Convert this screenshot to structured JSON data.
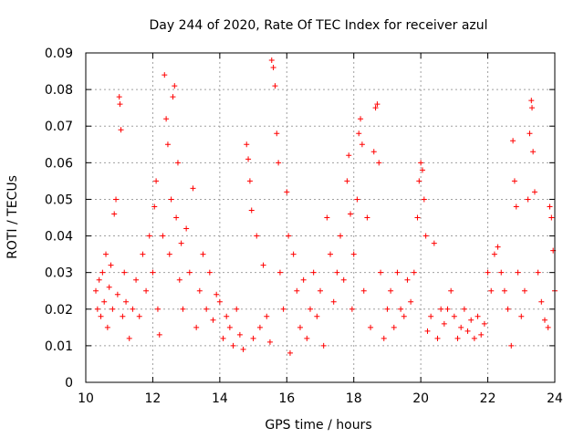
{
  "chart_data": {
    "type": "scatter",
    "title": "Day 244 of 2020, Rate Of TEC Index for receiver azul",
    "xlabel": "GPS time / hours",
    "ylabel": "ROTI / TECUs",
    "xlim": [
      10,
      24
    ],
    "ylim": [
      0,
      0.09
    ],
    "grid": true,
    "marker": "+",
    "marker_color": "#ff0000",
    "x_ticks": [
      "10",
      "12",
      "14",
      "16",
      "18",
      "20",
      "22",
      "24"
    ],
    "y_ticks": [
      "0",
      "0.01",
      "0.02",
      "0.03",
      "0.04",
      "0.05",
      "0.06",
      "0.07",
      "0.08",
      "0.09"
    ],
    "series": [
      {
        "points": [
          [
            10.3,
            0.025
          ],
          [
            10.35,
            0.02
          ],
          [
            10.4,
            0.028
          ],
          [
            10.45,
            0.018
          ],
          [
            10.5,
            0.03
          ],
          [
            10.55,
            0.022
          ],
          [
            10.6,
            0.035
          ],
          [
            10.65,
            0.015
          ],
          [
            10.7,
            0.026
          ],
          [
            10.75,
            0.032
          ],
          [
            10.8,
            0.02
          ],
          [
            10.85,
            0.046
          ],
          [
            10.9,
            0.05
          ],
          [
            10.95,
            0.024
          ],
          [
            11.0,
            0.078
          ],
          [
            11.02,
            0.076
          ],
          [
            11.05,
            0.069
          ],
          [
            11.1,
            0.018
          ],
          [
            11.15,
            0.03
          ],
          [
            11.2,
            0.022
          ],
          [
            11.3,
            0.012
          ],
          [
            11.4,
            0.02
          ],
          [
            11.5,
            0.028
          ],
          [
            11.6,
            0.018
          ],
          [
            11.7,
            0.035
          ],
          [
            11.8,
            0.025
          ],
          [
            11.9,
            0.04
          ],
          [
            12.0,
            0.03
          ],
          [
            12.05,
            0.048
          ],
          [
            12.1,
            0.055
          ],
          [
            12.15,
            0.02
          ],
          [
            12.2,
            0.013
          ],
          [
            12.3,
            0.04
          ],
          [
            12.35,
            0.084
          ],
          [
            12.4,
            0.072
          ],
          [
            12.45,
            0.065
          ],
          [
            12.5,
            0.035
          ],
          [
            12.55,
            0.05
          ],
          [
            12.6,
            0.078
          ],
          [
            12.65,
            0.081
          ],
          [
            12.7,
            0.045
          ],
          [
            12.75,
            0.06
          ],
          [
            12.8,
            0.028
          ],
          [
            12.85,
            0.038
          ],
          [
            12.9,
            0.02
          ],
          [
            13.0,
            0.042
          ],
          [
            13.1,
            0.03
          ],
          [
            13.2,
            0.053
          ],
          [
            13.3,
            0.015
          ],
          [
            13.4,
            0.025
          ],
          [
            13.5,
            0.035
          ],
          [
            13.6,
            0.02
          ],
          [
            13.7,
            0.03
          ],
          [
            13.8,
            0.017
          ],
          [
            13.9,
            0.024
          ],
          [
            14.0,
            0.022
          ],
          [
            14.1,
            0.012
          ],
          [
            14.2,
            0.018
          ],
          [
            14.3,
            0.015
          ],
          [
            14.4,
            0.01
          ],
          [
            14.5,
            0.02
          ],
          [
            14.6,
            0.013
          ],
          [
            14.7,
            0.009
          ],
          [
            14.8,
            0.065
          ],
          [
            14.85,
            0.061
          ],
          [
            14.9,
            0.055
          ],
          [
            14.95,
            0.047
          ],
          [
            15.0,
            0.012
          ],
          [
            15.1,
            0.04
          ],
          [
            15.2,
            0.015
          ],
          [
            15.3,
            0.032
          ],
          [
            15.4,
            0.018
          ],
          [
            15.5,
            0.011
          ],
          [
            15.55,
            0.088
          ],
          [
            15.6,
            0.086
          ],
          [
            15.65,
            0.081
          ],
          [
            15.7,
            0.068
          ],
          [
            15.75,
            0.06
          ],
          [
            15.8,
            0.03
          ],
          [
            15.9,
            0.02
          ],
          [
            16.0,
            0.052
          ],
          [
            16.05,
            0.04
          ],
          [
            16.1,
            0.008
          ],
          [
            16.2,
            0.035
          ],
          [
            16.3,
            0.025
          ],
          [
            16.4,
            0.015
          ],
          [
            16.5,
            0.028
          ],
          [
            16.6,
            0.012
          ],
          [
            16.7,
            0.02
          ],
          [
            16.8,
            0.03
          ],
          [
            16.9,
            0.018
          ],
          [
            17.0,
            0.025
          ],
          [
            17.1,
            0.01
          ],
          [
            17.2,
            0.045
          ],
          [
            17.3,
            0.035
          ],
          [
            17.4,
            0.022
          ],
          [
            17.5,
            0.03
          ],
          [
            17.6,
            0.04
          ],
          [
            17.7,
            0.028
          ],
          [
            17.8,
            0.055
          ],
          [
            17.85,
            0.062
          ],
          [
            17.9,
            0.046
          ],
          [
            17.95,
            0.02
          ],
          [
            18.0,
            0.035
          ],
          [
            18.1,
            0.05
          ],
          [
            18.15,
            0.068
          ],
          [
            18.2,
            0.072
          ],
          [
            18.25,
            0.065
          ],
          [
            18.3,
            0.025
          ],
          [
            18.4,
            0.045
          ],
          [
            18.5,
            0.015
          ],
          [
            18.6,
            0.063
          ],
          [
            18.65,
            0.075
          ],
          [
            18.7,
            0.076
          ],
          [
            18.75,
            0.06
          ],
          [
            18.8,
            0.03
          ],
          [
            18.9,
            0.012
          ],
          [
            19.0,
            0.02
          ],
          [
            19.1,
            0.025
          ],
          [
            19.2,
            0.015
          ],
          [
            19.3,
            0.03
          ],
          [
            19.4,
            0.02
          ],
          [
            19.5,
            0.018
          ],
          [
            19.6,
            0.028
          ],
          [
            19.7,
            0.022
          ],
          [
            19.8,
            0.03
          ],
          [
            19.9,
            0.045
          ],
          [
            19.95,
            0.055
          ],
          [
            20.0,
            0.06
          ],
          [
            20.05,
            0.058
          ],
          [
            20.1,
            0.05
          ],
          [
            20.15,
            0.04
          ],
          [
            20.2,
            0.014
          ],
          [
            20.3,
            0.018
          ],
          [
            20.4,
            0.038
          ],
          [
            20.5,
            0.012
          ],
          [
            20.6,
            0.02
          ],
          [
            20.7,
            0.016
          ],
          [
            20.8,
            0.02
          ],
          [
            20.9,
            0.025
          ],
          [
            21.0,
            0.018
          ],
          [
            21.1,
            0.012
          ],
          [
            21.2,
            0.015
          ],
          [
            21.3,
            0.02
          ],
          [
            21.4,
            0.014
          ],
          [
            21.5,
            0.017
          ],
          [
            21.6,
            0.012
          ],
          [
            21.7,
            0.018
          ],
          [
            21.8,
            0.013
          ],
          [
            21.9,
            0.016
          ],
          [
            22.0,
            0.03
          ],
          [
            22.1,
            0.025
          ],
          [
            22.2,
            0.035
          ],
          [
            22.3,
            0.037
          ],
          [
            22.4,
            0.03
          ],
          [
            22.5,
            0.025
          ],
          [
            22.6,
            0.02
          ],
          [
            22.7,
            0.01
          ],
          [
            22.75,
            0.066
          ],
          [
            22.8,
            0.055
          ],
          [
            22.85,
            0.048
          ],
          [
            22.9,
            0.03
          ],
          [
            23.0,
            0.018
          ],
          [
            23.1,
            0.025
          ],
          [
            23.2,
            0.05
          ],
          [
            23.25,
            0.068
          ],
          [
            23.3,
            0.077
          ],
          [
            23.32,
            0.075
          ],
          [
            23.35,
            0.063
          ],
          [
            23.4,
            0.052
          ],
          [
            23.5,
            0.03
          ],
          [
            23.6,
            0.022
          ],
          [
            23.7,
            0.017
          ],
          [
            23.8,
            0.015
          ],
          [
            23.85,
            0.048
          ],
          [
            23.9,
            0.045
          ],
          [
            23.95,
            0.036
          ],
          [
            24.0,
            0.025
          ]
        ]
      }
    ]
  }
}
